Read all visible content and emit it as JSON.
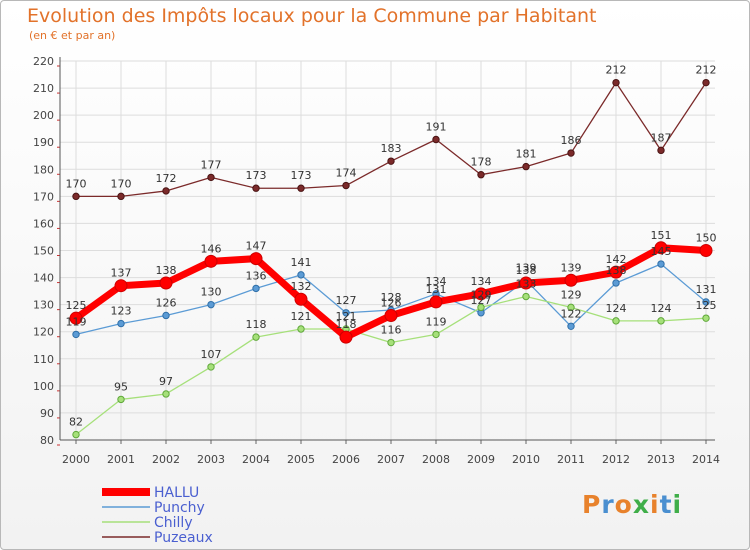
{
  "chart_data": {
    "type": "line",
    "title": "Evolution des Impôts locaux pour la Commune par Habitant",
    "subtitle": "(en € et par an)",
    "xlabel": "",
    "ylabel": "",
    "ylim": [
      80,
      220
    ],
    "yticks": [
      80,
      90,
      100,
      110,
      120,
      130,
      140,
      150,
      160,
      170,
      180,
      190,
      200,
      210,
      220
    ],
    "categories": [
      "2000",
      "2001",
      "2002",
      "2003",
      "2004",
      "2005",
      "2006",
      "2007",
      "2008",
      "2009",
      "2010",
      "2011",
      "2012",
      "2013",
      "2014"
    ],
    "series": [
      {
        "name": "HALLU",
        "color": "#ff0000",
        "values": [
          125,
          137,
          138,
          146,
          147,
          132,
          118,
          126,
          131,
          134,
          138,
          139,
          142,
          151,
          150
        ],
        "labels": [
          "125",
          "137",
          "138",
          "146",
          "147",
          "132",
          "118",
          "126",
          "131",
          "134",
          "138",
          "139",
          "142",
          "151",
          "150"
        ]
      },
      {
        "name": "Punchy",
        "color": "#5b9bd5",
        "values": [
          119,
          123,
          126,
          130,
          136,
          141,
          127,
          128,
          134,
          127,
          139,
          122,
          138,
          145,
          131
        ],
        "labels": [
          "119",
          "123",
          "126",
          "130",
          "136",
          "141",
          "127",
          "128",
          "134",
          "127",
          "139",
          "122",
          "138",
          "145",
          "131"
        ]
      },
      {
        "name": "Chilly",
        "color": "#a6e07a",
        "values": [
          82,
          95,
          97,
          107,
          118,
          121,
          121,
          116,
          119,
          129,
          133,
          129,
          124,
          124,
          125
        ],
        "labels": [
          "82",
          "95",
          "97",
          "107",
          "118",
          "121",
          "121",
          "116",
          "119",
          "129",
          "133",
          "129",
          "124",
          "124",
          "125"
        ]
      },
      {
        "name": "Puzeaux",
        "color": "#7b2a2a",
        "values": [
          170,
          170,
          172,
          177,
          173,
          173,
          174,
          183,
          191,
          178,
          181,
          186,
          212,
          187,
          212
        ],
        "labels": [
          "170",
          "170",
          "172",
          "177",
          "173",
          "173",
          "174",
          "183",
          "191",
          "178",
          "181",
          "186",
          "212",
          "187",
          "212"
        ]
      }
    ],
    "legend_position": "bottom-left",
    "grid": true
  },
  "branding": {
    "logo_text": "Proxiti",
    "logo_letters": [
      "P",
      "r",
      "o",
      "x",
      "i",
      "t",
      "i"
    ],
    "logo_colors": [
      "#e8822c",
      "#4a8fd0",
      "#e8822c",
      "#3fae49",
      "#e8822c",
      "#4a8fd0",
      "#3fae49"
    ]
  },
  "colors": {
    "title": "#e2722a",
    "axis": "#555555",
    "grid": "#dddddd"
  }
}
